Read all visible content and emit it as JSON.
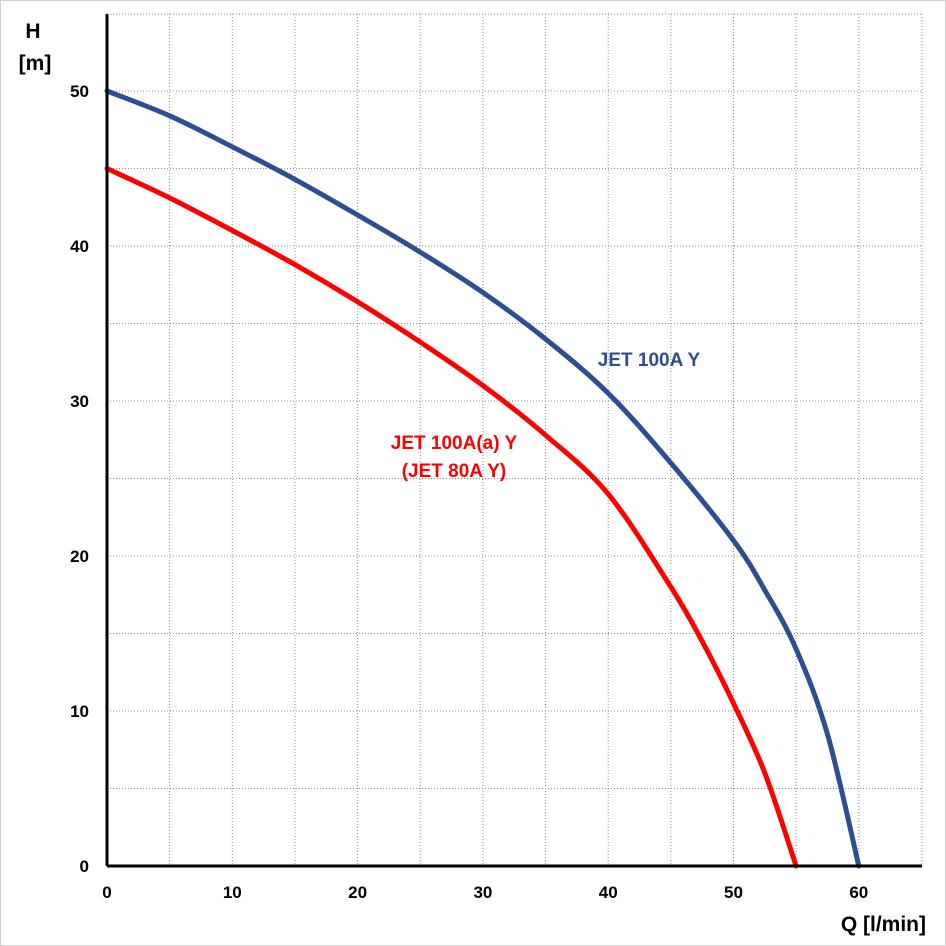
{
  "chart_data": {
    "type": "line",
    "xlabel": "Q [l/min]",
    "ylabel": [
      "H",
      "[m]"
    ],
    "xlim": [
      0,
      65
    ],
    "ylim": [
      0,
      55
    ],
    "x_ticks": [
      0,
      10,
      20,
      30,
      40,
      50,
      60
    ],
    "y_ticks": [
      0,
      10,
      20,
      30,
      40,
      50
    ],
    "x_grid_step": 5,
    "y_grid_step": 5,
    "grid": true,
    "series": [
      {
        "name": [
          "JET 100A Y"
        ],
        "color": "#2e4d92",
        "x": [
          0,
          5,
          10,
          15,
          20,
          25,
          30,
          35,
          40,
          45,
          50,
          52.5,
          55,
          57.5,
          60
        ],
        "y": [
          50,
          48.4,
          46.4,
          44.3,
          42,
          39.6,
          37,
          34,
          30.5,
          26,
          21,
          17.8,
          14,
          8.5,
          0
        ]
      },
      {
        "name": [
          "JET 100A(a) Y",
          "(JET 80A Y)"
        ],
        "color": "#ff0000",
        "x": [
          0,
          5,
          10,
          15,
          20,
          25,
          30,
          35,
          40,
          45,
          47.5,
          50,
          52.5,
          55
        ],
        "y": [
          45,
          43.1,
          41,
          38.8,
          36.4,
          33.8,
          31,
          27.8,
          24,
          18,
          14.5,
          10.5,
          6,
          0
        ]
      }
    ]
  }
}
